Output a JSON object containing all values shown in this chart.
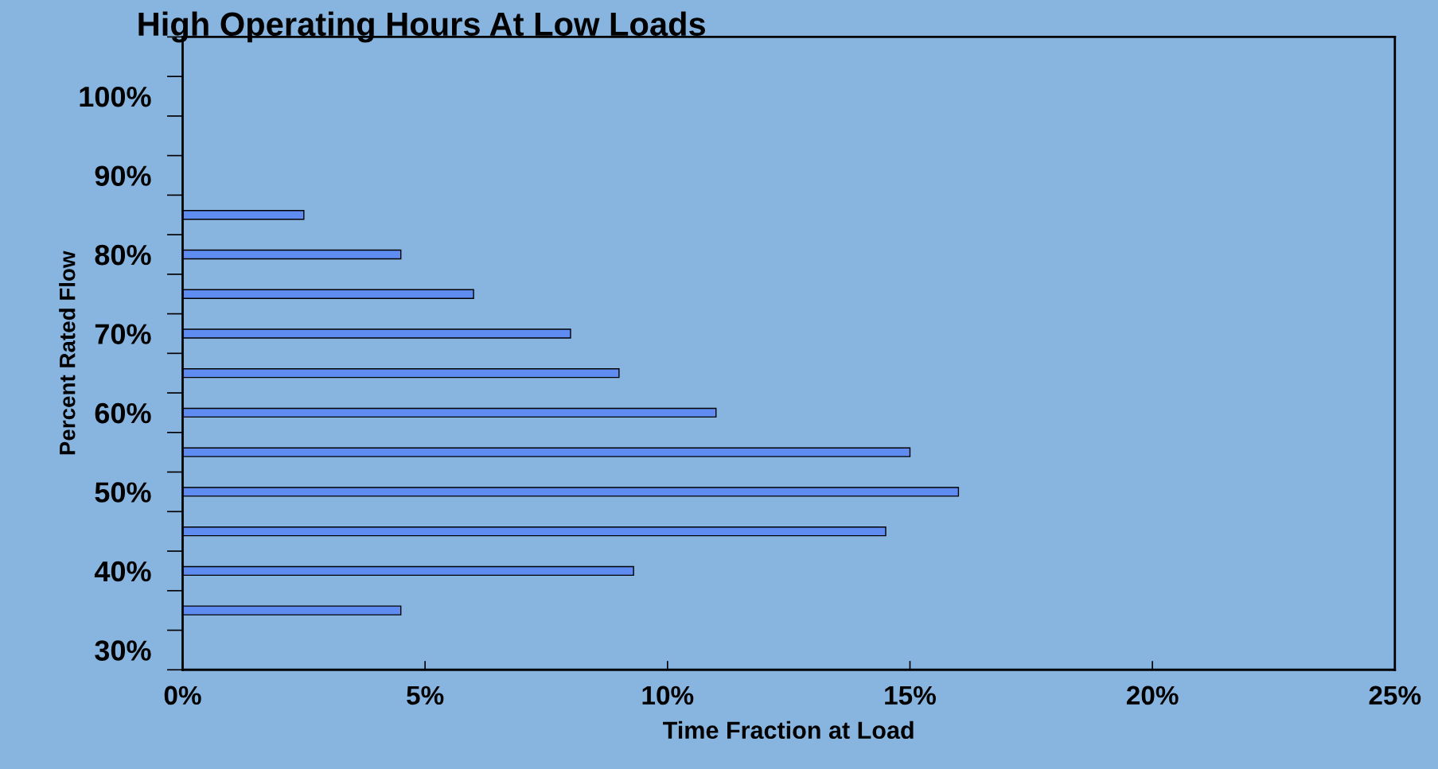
{
  "chart_data": {
    "type": "bar",
    "orientation": "horizontal",
    "title": "High Operating Hours At Low Loads",
    "xlabel": "Time Fraction at Load",
    "ylabel": "Percent Rated Flow",
    "categories": [
      null,
      "100%",
      null,
      "90%",
      null,
      "80%",
      null,
      "70%",
      null,
      "60%",
      null,
      "50%",
      null,
      "40%",
      null,
      "30%"
    ],
    "values": [
      null,
      null,
      null,
      null,
      2.5,
      4.5,
      6,
      8,
      9,
      11,
      15,
      16,
      14.5,
      9.3,
      4.5,
      null
    ],
    "color": "#5f8cf0",
    "xlim": [
      0,
      25
    ],
    "xticks": [
      {
        "value": 0,
        "label": "0%"
      },
      {
        "value": 5,
        "label": "5%"
      },
      {
        "value": 10,
        "label": "10%"
      },
      {
        "value": 15,
        "label": "15%"
      },
      {
        "value": 20,
        "label": "20%"
      },
      {
        "value": 25,
        "label": "25%"
      }
    ],
    "grid": false,
    "legend": false
  }
}
